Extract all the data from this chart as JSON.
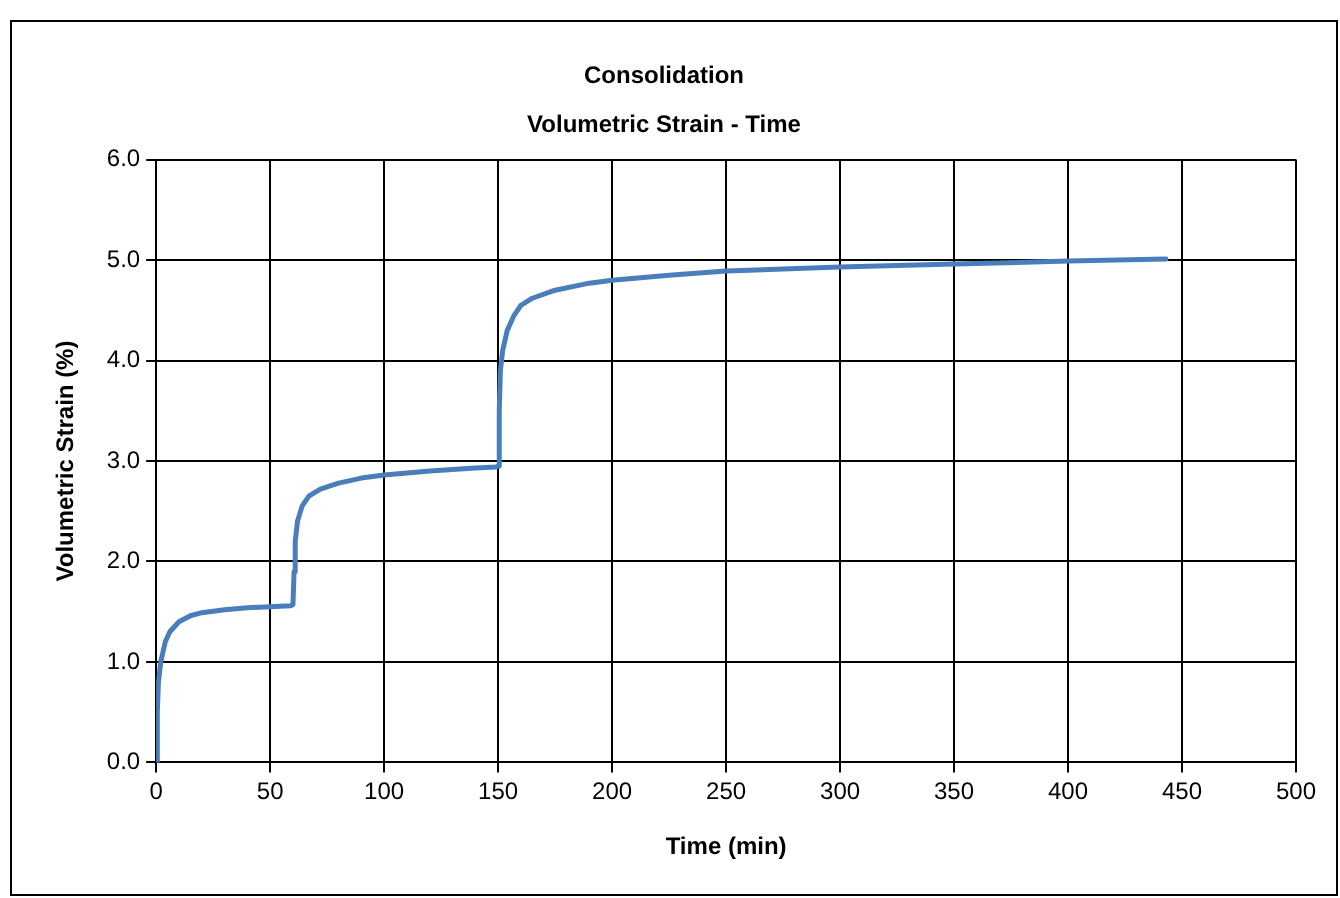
{
  "chart_data": {
    "type": "line",
    "title": "Consolidation",
    "subtitle": "Volumetric Strain - Time",
    "xlabel": "Time (min)",
    "ylabel": "Volumetric Strain (%)",
    "x": [
      0,
      0.5,
      1,
      2,
      4,
      6,
      10,
      15,
      20,
      30,
      40,
      50,
      59,
      60,
      60.5,
      61,
      62,
      64,
      67,
      72,
      80,
      90,
      100,
      120,
      140,
      149,
      150,
      150.5,
      151,
      152,
      154,
      157,
      160,
      165,
      175,
      190,
      200,
      225,
      250,
      300,
      350,
      400,
      443
    ],
    "series": [
      {
        "color": "#4a7ebb",
        "values": [
          0,
          0.5,
          0.8,
          1.0,
          1.2,
          1.3,
          1.4,
          1.46,
          1.49,
          1.52,
          1.54,
          1.55,
          1.56,
          1.57,
          1.9,
          2.2,
          2.4,
          2.55,
          2.65,
          2.72,
          2.78,
          2.83,
          2.86,
          2.9,
          2.93,
          2.94,
          2.95,
          3.5,
          3.9,
          4.1,
          4.3,
          4.45,
          4.55,
          4.62,
          4.7,
          4.77,
          4.8,
          4.85,
          4.89,
          4.93,
          4.96,
          4.99,
          5.01
        ]
      }
    ],
    "xlim": [
      0,
      500
    ],
    "xticks": [
      0,
      50,
      100,
      150,
      200,
      250,
      300,
      350,
      400,
      450,
      500
    ],
    "ylim": [
      0,
      6
    ],
    "yticks": [
      {
        "value": 0,
        "label": "0.0"
      },
      {
        "value": 1,
        "label": "1.0"
      },
      {
        "value": 2,
        "label": "2.0"
      },
      {
        "value": 3,
        "label": "3.0"
      },
      {
        "value": 4,
        "label": "4.0"
      },
      {
        "value": 5,
        "label": "5.0"
      },
      {
        "value": 6,
        "label": "6.0"
      }
    ],
    "grid": true,
    "legend": false,
    "marker": "none",
    "line_style": "solid"
  }
}
